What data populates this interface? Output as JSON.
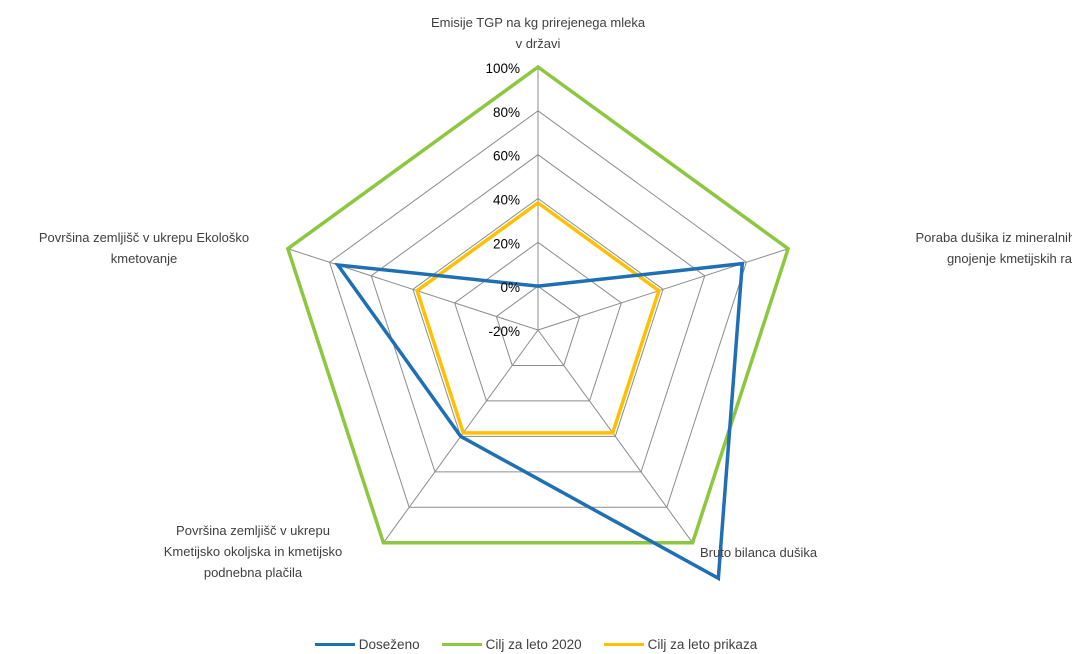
{
  "chart_data": {
    "type": "radar",
    "axes": [
      [
        "Emisije TGP na kg prirejenega mleka",
        "v državi"
      ],
      [
        "Poraba dušika iz mineralnih gnojil za",
        "gnojenje kmetijskih rastlin"
      ],
      [
        "Bruto bilanca dušika"
      ],
      [
        "Površina zemljišč v ukrepu",
        "Kmetijsko okoljska in kmetijsko",
        "podnebna plačila"
      ],
      [
        "Površina zemljišč v ukrepu Ekološko",
        "kmetovanje"
      ]
    ],
    "ticks": [
      "-20%",
      "0%",
      "20%",
      "40%",
      "60%",
      "80%",
      "100%"
    ],
    "range": [
      -20,
      100
    ],
    "grid": true,
    "legend_position": "bottom",
    "series": [
      {
        "name": "Doseženo",
        "color": "#1f6fb4",
        "values": [
          0,
          78,
          120,
          40,
          76
        ]
      },
      {
        "name": "Cilj za leto 2020",
        "color": "#8dc63f",
        "values": [
          100,
          100,
          100,
          100,
          100
        ]
      },
      {
        "name": "Cilj za leto prikaza",
        "color": "#ffc000",
        "values": [
          38,
          38,
          38,
          38,
          38
        ]
      }
    ]
  }
}
